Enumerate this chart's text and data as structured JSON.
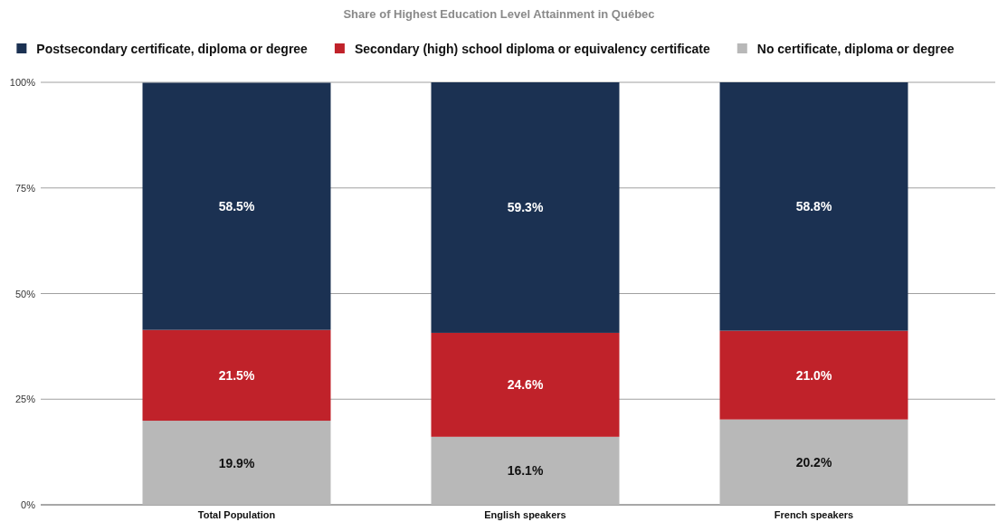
{
  "chart_data": {
    "type": "bar",
    "stacked": true,
    "title": "Share of Highest Education Level Attainment in Québec",
    "categories": [
      "Total Population",
      "English speakers",
      "French speakers"
    ],
    "series": [
      {
        "name": "No certificate, diploma or degree",
        "color": "#b8b8b8",
        "values": [
          19.9,
          16.1,
          20.2
        ],
        "value_labels": [
          "19.9%",
          "16.1%",
          "20.2%"
        ]
      },
      {
        "name": "Secondary (high) school diploma or equivalency certificate",
        "color": "#c0222a",
        "values": [
          21.5,
          24.6,
          21.0
        ],
        "value_labels": [
          "21.5%",
          "24.6%",
          "21.0%"
        ]
      },
      {
        "name": "Postsecondary certificate, diploma or degree",
        "color": "#1b3152",
        "values": [
          58.5,
          59.3,
          58.8
        ],
        "value_labels": [
          "58.5%",
          "59.3%",
          "58.8%"
        ]
      }
    ],
    "ylim": [
      0,
      100
    ],
    "yticks": [
      {
        "value": 0,
        "label": "0%"
      },
      {
        "value": 25,
        "label": "25%"
      },
      {
        "value": 50,
        "label": "50%"
      },
      {
        "value": 75,
        "label": "75%"
      },
      {
        "value": 100,
        "label": "100%"
      }
    ],
    "grid": "y",
    "legend": "top"
  }
}
